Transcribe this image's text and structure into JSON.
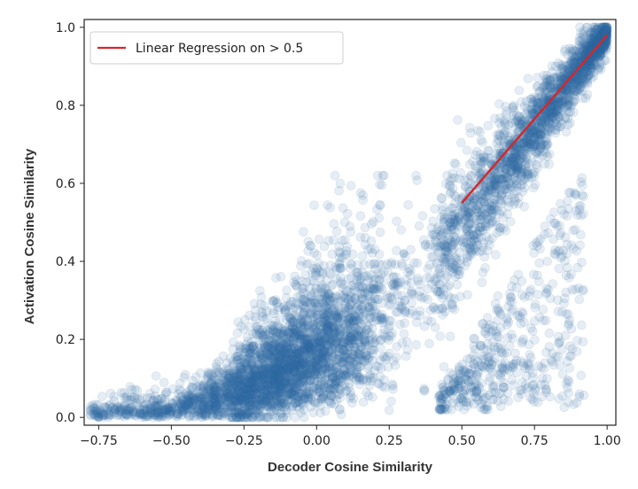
{
  "chart_data": {
    "type": "scatter",
    "title": "",
    "xlabel": "Decoder Cosine Similarity",
    "ylabel": "Activation Cosine Similarity",
    "xlim": [
      -0.8,
      1.03
    ],
    "ylim": [
      -0.02,
      1.02
    ],
    "xticks": [
      -0.75,
      -0.5,
      -0.25,
      0.0,
      0.25,
      0.5,
      0.75,
      1.0
    ],
    "xtick_labels": [
      "−0.75",
      "−0.50",
      "−0.25",
      "0.00",
      "0.25",
      "0.50",
      "0.75",
      "1.00"
    ],
    "yticks": [
      0.0,
      0.2,
      0.4,
      0.6,
      0.8,
      1.0
    ],
    "ytick_labels": [
      "0.0",
      "0.2",
      "0.4",
      "0.6",
      "0.8",
      "1.0"
    ],
    "grid": false,
    "legend_position": "top-left",
    "colors": {
      "points": "#2e6da4",
      "regression": "#d62728"
    },
    "series": [
      {
        "kind": "scatter",
        "description_points": [
          {
            "x": -0.75,
            "y": 0.0
          },
          {
            "x": -0.6,
            "y": 0.01
          },
          {
            "x": -0.45,
            "y": 0.02
          },
          {
            "x": -0.3,
            "y": 0.05
          },
          {
            "x": -0.15,
            "y": 0.12
          },
          {
            "x": 0.0,
            "y": 0.22
          },
          {
            "x": 0.15,
            "y": 0.35
          },
          {
            "x": 0.3,
            "y": 0.42
          },
          {
            "x": 0.45,
            "y": 0.48
          },
          {
            "x": 0.6,
            "y": 0.65
          },
          {
            "x": 0.75,
            "y": 0.78
          },
          {
            "x": 0.9,
            "y": 0.9
          },
          {
            "x": 1.0,
            "y": 1.0
          }
        ]
      },
      {
        "kind": "line",
        "name": "Linear Regression on > 0.5",
        "x": [
          0.5,
          1.0
        ],
        "y": [
          0.55,
          0.98
        ]
      }
    ]
  }
}
